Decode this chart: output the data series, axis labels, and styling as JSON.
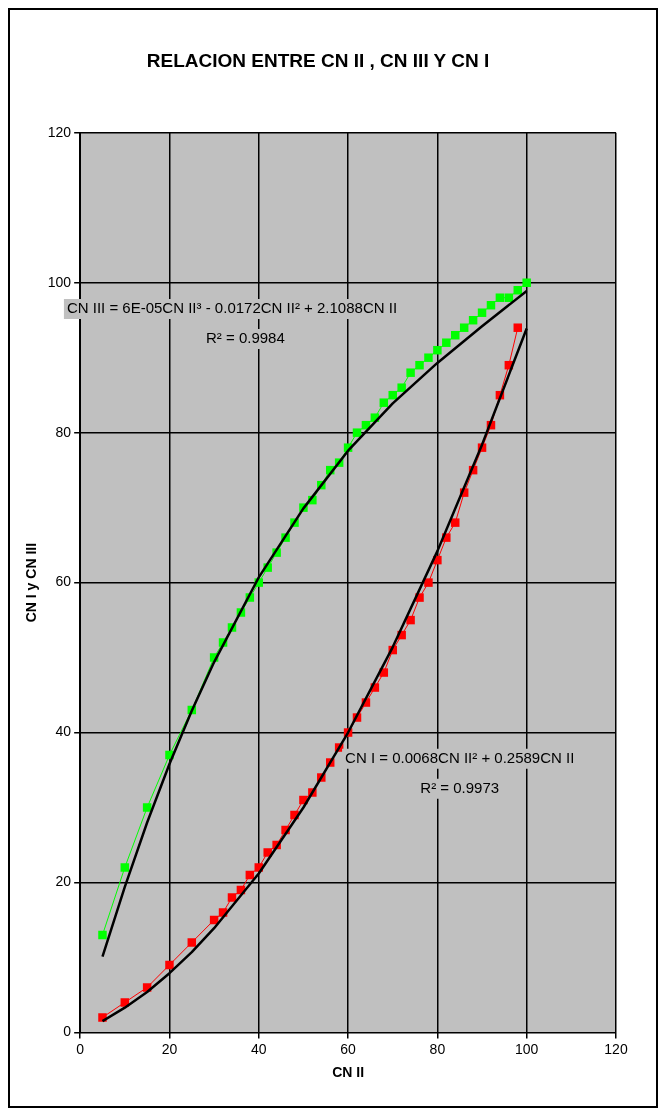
{
  "chart_data": {
    "type": "line",
    "title": "RELACION ENTRE CN II , CN III Y CN I",
    "xlabel": "CN II",
    "ylabel": "CN I y CN III",
    "xlim": [
      0,
      120
    ],
    "xticks": [
      0,
      20,
      40,
      60,
      80,
      100,
      120
    ],
    "ylim": [
      0,
      120
    ],
    "yticks": [
      0,
      20,
      40,
      60,
      80,
      100,
      120
    ],
    "grid": true,
    "legend": false,
    "marker": "square",
    "series": [
      {
        "color": "#00ff00",
        "x": [
          5,
          10,
          15,
          20,
          25,
          30,
          32,
          34,
          36,
          38,
          40,
          42,
          44,
          46,
          48,
          50,
          52,
          54,
          56,
          58,
          60,
          62,
          64,
          66,
          68,
          70,
          72,
          74,
          76,
          78,
          80,
          82,
          84,
          86,
          88,
          90,
          92,
          94,
          96,
          98,
          100
        ],
        "values": [
          13,
          22,
          30,
          37,
          43,
          50,
          52,
          54,
          56,
          58,
          60,
          62,
          64,
          66,
          68,
          70,
          71,
          73,
          75,
          76,
          78,
          80,
          81,
          82,
          84,
          85,
          86,
          88,
          89,
          90,
          91,
          92,
          93,
          94,
          95,
          96,
          97,
          98,
          98,
          99,
          100
        ]
      },
      {
        "color": "#ff0000",
        "x": [
          5,
          10,
          15,
          20,
          25,
          30,
          32,
          34,
          36,
          38,
          40,
          42,
          44,
          46,
          48,
          50,
          52,
          54,
          56,
          58,
          60,
          62,
          64,
          66,
          68,
          70,
          72,
          74,
          76,
          78,
          80,
          82,
          84,
          86,
          88,
          90,
          92,
          94,
          96,
          98
        ],
        "values": [
          2,
          4,
          6,
          9,
          12,
          15,
          16,
          18,
          19,
          21,
          22,
          24,
          25,
          27,
          29,
          31,
          32,
          34,
          36,
          38,
          40,
          42,
          44,
          46,
          48,
          51,
          53,
          55,
          58,
          60,
          63,
          66,
          68,
          72,
          75,
          78,
          81,
          85,
          89,
          94
        ]
      },
      {
        "type": "line",
        "color": "#000000",
        "marker": "none",
        "x": [
          5,
          10,
          15,
          20,
          25,
          30,
          40,
          50,
          60,
          70,
          80,
          90,
          100
        ],
        "values": [
          10.1,
          19.4,
          28,
          35.8,
          42.9,
          49.4,
          60.7,
          69.9,
          77.6,
          83.9,
          89.3,
          94.2,
          98.9
        ]
      },
      {
        "type": "line",
        "color": "#000000",
        "marker": "none",
        "x": [
          5,
          10,
          15,
          20,
          25,
          30,
          40,
          50,
          60,
          70,
          80,
          90,
          100
        ],
        "values": [
          1.5,
          3.3,
          5.4,
          7.9,
          10.7,
          13.9,
          21.2,
          30,
          40,
          51.4,
          64.2,
          78.4,
          93.9
        ]
      }
    ],
    "annotations": [
      "CN III = 6E-05CN II³ - 0.0172CN II² + 2.1088CN II",
      "R² = 0.9984",
      "CN I = 0.0068CN II² + 0.2589CN II",
      "R² = 0.9973"
    ]
  }
}
